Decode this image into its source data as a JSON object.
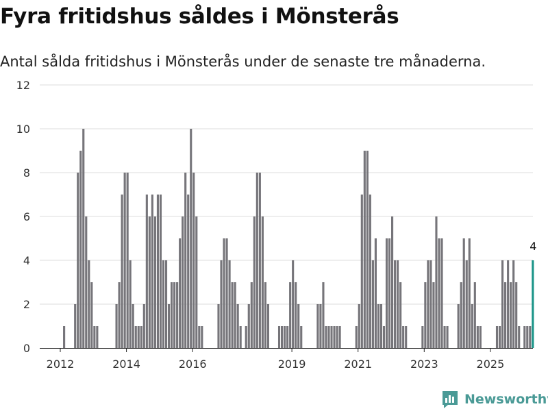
{
  "header": {
    "title": "Fyra fritidshus såldes i Mönsterås",
    "subtitle": "Antal sålda fritidshus i Mönsterås under de senaste tre månaderna."
  },
  "brand": {
    "name": "Newsworthy"
  },
  "colors": {
    "bar": "#76757a",
    "highlight": "#1a9488",
    "grid": "#dcdcdc",
    "brand": "#4a9a96"
  },
  "chart_data": {
    "type": "bar",
    "title": "Fyra fritidshus såldes i Mönsterås",
    "subtitle": "Antal sålda fritidshus i Mönsterås under de senaste tre månaderna.",
    "xlabel": "",
    "ylabel": "",
    "ylim": [
      0,
      12
    ],
    "yticks": [
      0,
      2,
      4,
      6,
      8,
      10,
      12
    ],
    "grid": true,
    "x_start": "2012-01",
    "x_end": "2025-05",
    "xtick_labels": [
      {
        "label": "2012",
        "year": 2012
      },
      {
        "label": "2014",
        "year": 2014
      },
      {
        "label": "2016",
        "year": 2016
      },
      {
        "label": "2019",
        "year": 2019
      },
      {
        "label": "2021",
        "year": 2021
      },
      {
        "label": "2023",
        "year": 2023
      },
      {
        "label": "2025",
        "year": 2025
      }
    ],
    "values": [
      0,
      1,
      0,
      0,
      0,
      2,
      8,
      9,
      10,
      6,
      4,
      3,
      1,
      1,
      0,
      0,
      0,
      0,
      0,
      0,
      2,
      3,
      7,
      8,
      8,
      4,
      2,
      1,
      1,
      1,
      2,
      7,
      6,
      7,
      6,
      7,
      7,
      4,
      4,
      2,
      3,
      3,
      3,
      5,
      6,
      8,
      7,
      10,
      8,
      6,
      1,
      1,
      0,
      0,
      0,
      0,
      0,
      2,
      4,
      5,
      5,
      4,
      3,
      3,
      2,
      1,
      0,
      1,
      2,
      3,
      6,
      8,
      8,
      6,
      3,
      2,
      0,
      0,
      0,
      1,
      1,
      1,
      1,
      3,
      4,
      3,
      2,
      1,
      0,
      0,
      0,
      0,
      0,
      2,
      2,
      3,
      1,
      1,
      1,
      1,
      1,
      1,
      0,
      0,
      0,
      0,
      0,
      1,
      2,
      7,
      9,
      9,
      7,
      4,
      5,
      2,
      2,
      1,
      5,
      5,
      6,
      4,
      4,
      3,
      1,
      1,
      0,
      0,
      0,
      0,
      0,
      1,
      3,
      4,
      4,
      3,
      6,
      5,
      5,
      1,
      1,
      0,
      0,
      0,
      2,
      3,
      5,
      4,
      5,
      2,
      3,
      1,
      1,
      0,
      0,
      0,
      0,
      0,
      1,
      1,
      4,
      3,
      4,
      3,
      4,
      3,
      1,
      0,
      1,
      1,
      1,
      4
    ],
    "highlight_last": true,
    "data_labels": [
      {
        "index": "last",
        "text": "4"
      }
    ]
  }
}
